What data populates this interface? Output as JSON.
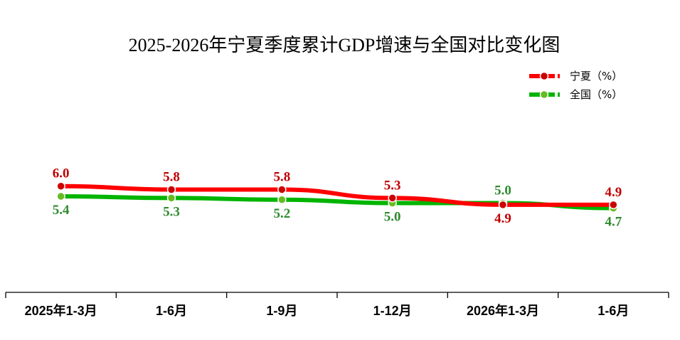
{
  "chart_data": {
    "type": "line",
    "title": "2025-2026年宁夏季度累计GDP增速与全国对比变化图",
    "categories": [
      "2025年1-3月",
      "1-6月",
      "1-9月",
      "1-12月",
      "2026年1-3月",
      "1-6月"
    ],
    "series": [
      {
        "name": "宁夏（%）",
        "color": "#ff0000",
        "marker_color": "#cc0000",
        "label_color": "#c00000",
        "values": [
          6.0,
          5.8,
          5.8,
          5.3,
          4.9,
          4.9
        ]
      },
      {
        "name": "全国（%）",
        "color": "#00b400",
        "marker_color": "#66bb22",
        "label_color": "#2e8b2e",
        "values": [
          5.4,
          5.3,
          5.2,
          5.0,
          5.0,
          4.7
        ]
      }
    ],
    "legend_position": "top-right",
    "grid": false
  }
}
